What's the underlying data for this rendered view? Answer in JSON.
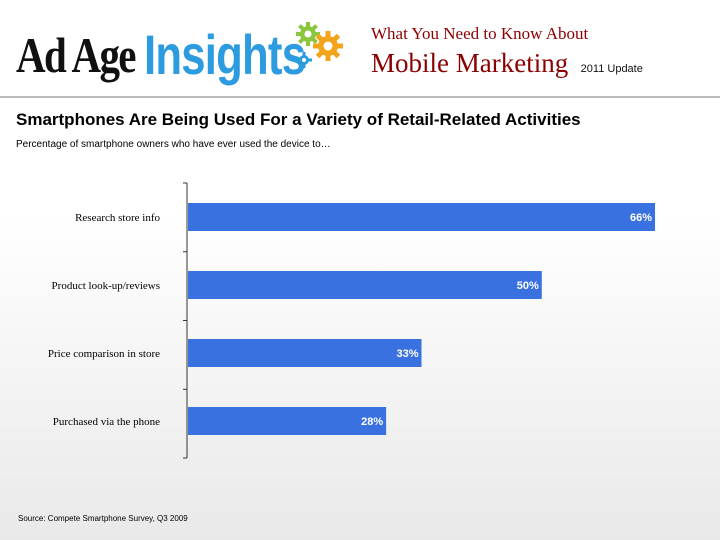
{
  "logo": {
    "ad": "Ad Age",
    "insights": "Insights"
  },
  "header": {
    "kicker": "What You Need to Know About",
    "headline": "Mobile Marketing",
    "update": "2011 Update"
  },
  "title": "Smartphones Are Being Used For a Variety of Retail-Related Activities",
  "subtitle": "Percentage of smartphone owners who have ever used the device to…",
  "source": "Source: Compete Smartphone Survey, Q3 2009",
  "colors": {
    "bar": "#3a71e0",
    "label": "#ffffff",
    "axis": "#333333",
    "header_red": "#8b0000",
    "brand_blue": "#2d9be0"
  },
  "chart_data": {
    "type": "bar",
    "orientation": "horizontal",
    "categories": [
      "Research store info",
      "Product look-up/reviews",
      "Price comparison in store",
      "Purchased via the phone"
    ],
    "values": [
      66,
      50,
      33,
      28
    ],
    "data_labels": [
      "66%",
      "50%",
      "33%",
      "28%"
    ],
    "xlim": [
      0,
      70
    ],
    "grid": false,
    "legend": "none"
  }
}
